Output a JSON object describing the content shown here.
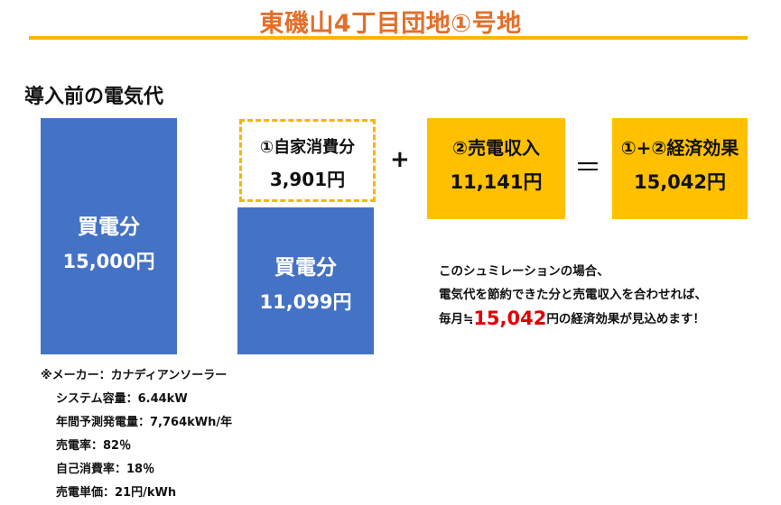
{
  "title": "東磯山4丁目団地①号地",
  "section_heading": "導入前の電気代",
  "before": {
    "label": "買電分",
    "value": "15,000円"
  },
  "after": {
    "self_consumption_label": "①自家消費分",
    "self_consumption_value": "3,901円",
    "purchase_label": "買電分",
    "purchase_value": "11,099円"
  },
  "operators": {
    "plus": "+",
    "equals": "＝"
  },
  "sales": {
    "label": "②売電収入",
    "value": "11,141円"
  },
  "total": {
    "label": "①+②経済効果",
    "value": "15,042円"
  },
  "summary": {
    "line1": "このシュミレーションの場合、",
    "line2": "電気代を節約できた分と売電収入を合わせれば、",
    "line3_prefix": "毎月≒",
    "line3_highlight": "15,042",
    "line3_suffix": "円の経済効果が見込めます！"
  },
  "specs": [
    "※メーカー：カナディアンソーラー",
    "システム容量：6.44kW",
    "年間予測発電量：7,764kWh/年",
    "売電率：82％",
    "自己消費率：18％",
    "売電単価：21円/kWh"
  ],
  "colors": {
    "title": "#e26f2b",
    "rule": "#f5b700",
    "blue_box": "#4472c4",
    "yellow_box": "#ffc000",
    "highlight": "#e00000"
  }
}
